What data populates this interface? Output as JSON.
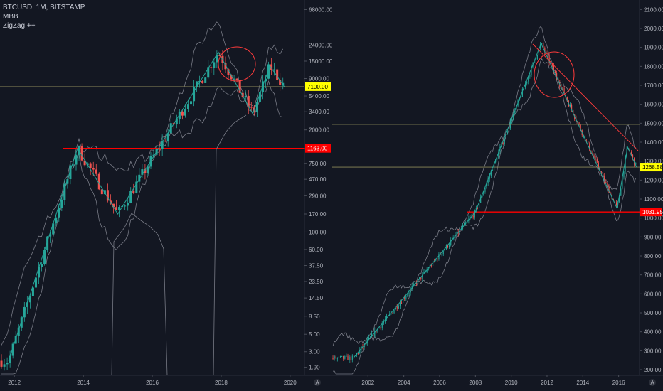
{
  "left_chart": {
    "legend": {
      "symbol": "BTCUSD, 1M, BITSTAMP",
      "ind1": "MBB",
      "ind2": "ZigZag ++"
    },
    "y_ticks": [
      "68000.00",
      "24000.00",
      "15000.00",
      "9000.00",
      "5400.00",
      "3400.00",
      "2000.00",
      "1163.00",
      "750.00",
      "470.00",
      "290.00",
      "170.00",
      "100.00",
      "60.00",
      "37.50",
      "23.50",
      "14.50",
      "8.50",
      "5.00",
      "3.00",
      "1.90"
    ],
    "x_ticks": [
      "2012",
      "2014",
      "2016",
      "2018",
      "2020"
    ],
    "price_label": "7100.00",
    "support_label": "1163.00",
    "axis_icon": "A"
  },
  "right_chart": {
    "y_ticks": [
      "2100.00",
      "2000.00",
      "1900.00",
      "1800.00",
      "1700.00",
      "1600.00",
      "1500.00",
      "1400.00",
      "1300.00",
      "1200.00",
      "1100.00",
      "1000.00",
      "900.00",
      "800.00",
      "700.00",
      "600.00",
      "500.00",
      "400.00",
      "300.00",
      "200.00"
    ],
    "x_ticks": [
      "2002",
      "2004",
      "2006",
      "2008",
      "2010",
      "2012",
      "2014",
      "2016"
    ],
    "price_label": "1268.58",
    "support_label": "1031.95",
    "axis_icon": "A"
  },
  "colors": {
    "background": "#131722",
    "bull": "#26a69a",
    "bear": "#ef5350",
    "zigzag": "#26a69a",
    "support": "#ff0000",
    "price_tag": "#ffff00",
    "bands": "#787b86"
  },
  "chart_data": [
    {
      "type": "candlestick",
      "title": "BTCUSD, 1M, BITSTAMP",
      "scale": "log",
      "ylim": [
        1.5,
        90000
      ],
      "x_range": [
        "2011-08",
        "2020-06"
      ],
      "support_level": 1163,
      "last_price": 7100,
      "zigzag": [
        {
          "t": "2011-11",
          "price": 2.3
        },
        {
          "t": "2013-11",
          "price": 1163
        },
        {
          "t": "2015-01",
          "price": 170
        },
        {
          "t": "2017-12",
          "price": 19500
        },
        {
          "t": "2018-12",
          "price": 3200
        },
        {
          "t": "2019-06",
          "price": 13000
        },
        {
          "t": "2019-11",
          "price": 7100
        }
      ]
    },
    {
      "type": "candlestick",
      "scale": "linear",
      "ylim": [
        170,
        2150
      ],
      "x_range": [
        "2000-01",
        "2017-03"
      ],
      "support_level": 1031.95,
      "last_price": 1268.58,
      "zigzag": [
        {
          "t": "2001-03",
          "price": 260
        },
        {
          "t": "2008-01",
          "price": 1031.95
        },
        {
          "t": "2011-09",
          "price": 1920
        },
        {
          "t": "2015-12",
          "price": 1050
        },
        {
          "t": "2016-07",
          "price": 1375
        },
        {
          "t": "2017-01",
          "price": 1268.58
        }
      ]
    }
  ]
}
